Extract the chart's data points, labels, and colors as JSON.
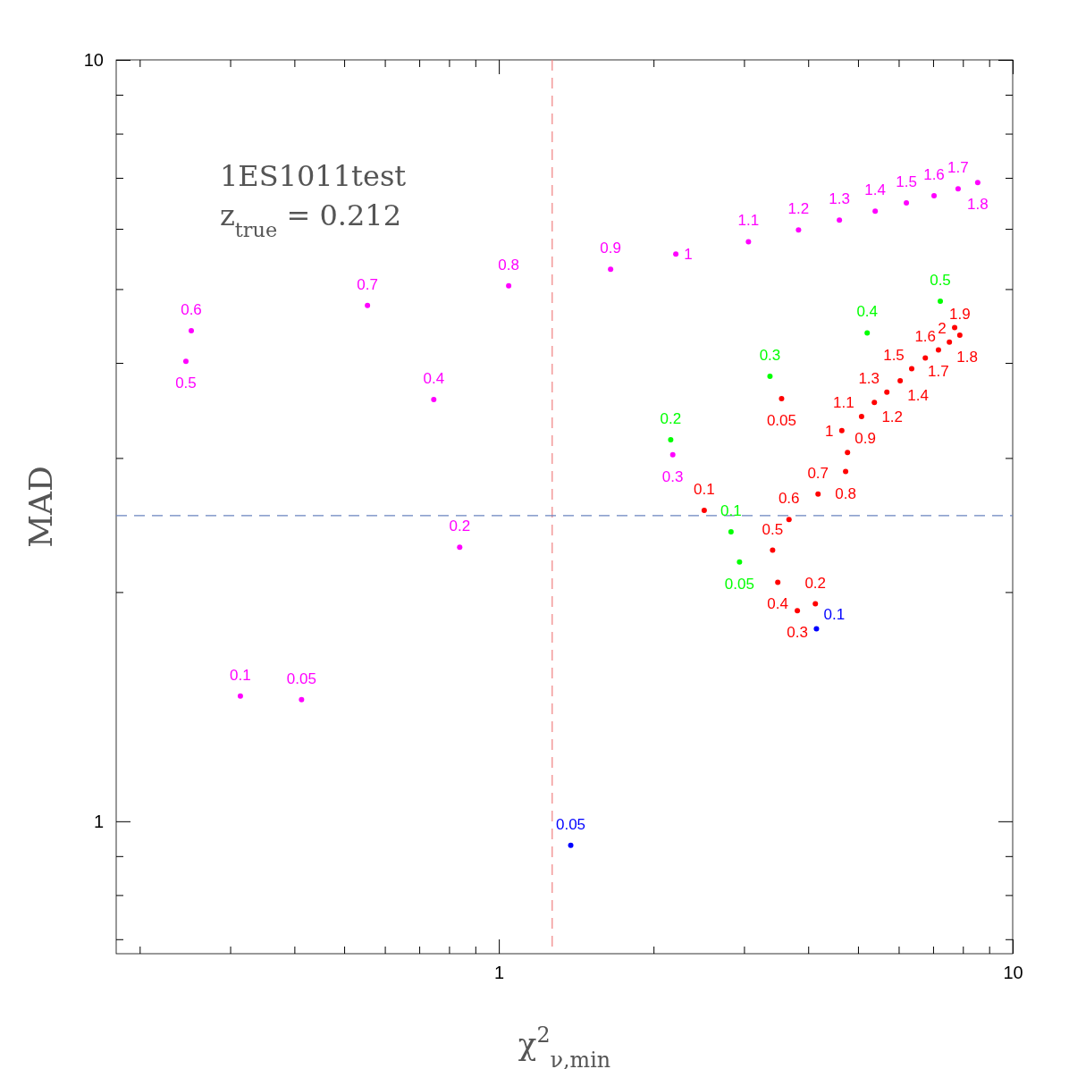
{
  "chart_data": {
    "type": "scatter",
    "xlabel": "χ$^{2}$$_{ν,min}$",
    "ylabel": "MAD",
    "log": "xy",
    "marker": "circle",
    "grid": false,
    "xlim": [
      0.18,
      10
    ],
    "ylim": [
      0.67,
      10
    ],
    "xticks": [
      {
        "value": 0.2,
        "label": null
      },
      {
        "value": 0.3,
        "label": null
      },
      {
        "value": 0.4,
        "label": null
      },
      {
        "value": 0.5,
        "label": null
      },
      {
        "value": 0.6,
        "label": null
      },
      {
        "value": 0.7,
        "label": null
      },
      {
        "value": 0.8,
        "label": null
      },
      {
        "value": 0.9,
        "label": null
      },
      1,
      {
        "value": 2,
        "label": null
      },
      {
        "value": 3,
        "label": null
      },
      {
        "value": 4,
        "label": null
      },
      {
        "value": 5,
        "label": null
      },
      {
        "value": 6,
        "label": null
      },
      {
        "value": 7,
        "label": null
      },
      {
        "value": 8,
        "label": null
      },
      {
        "value": 9,
        "label": null
      },
      10
    ],
    "yticks": [
      {
        "value": 0.7,
        "label": null
      },
      {
        "value": 0.8,
        "label": null
      },
      {
        "value": 0.9,
        "label": null
      },
      1,
      {
        "value": 2,
        "label": null
      },
      {
        "value": 3,
        "label": null
      },
      {
        "value": 4,
        "label": null
      },
      {
        "value": 5,
        "label": null
      },
      {
        "value": 6,
        "label": null
      },
      {
        "value": 7,
        "label": null
      },
      {
        "value": 8,
        "label": null
      },
      {
        "value": 9,
        "label": null
      },
      10
    ],
    "ref_lines": [
      {
        "axis": "x",
        "value": 1.27,
        "color": "#f08080",
        "line_style": "dashed"
      },
      {
        "axis": "y",
        "value": 2.52,
        "color": "#6a84c0",
        "line_style": "dashed"
      }
    ],
    "annotations": [
      "1ES1011test",
      "z$_{true}$ = 0.212",
      {
        "text": "0.05",
        "x": 0.413,
        "y": 1.445
      },
      {
        "text": "0.1",
        "x": 0.314,
        "y": 1.46
      },
      {
        "text": "0.2",
        "x": 0.839,
        "y": 2.29
      },
      {
        "text": "0.3",
        "x": 2.18,
        "y": 3.03
      },
      {
        "text": "0.4",
        "x": 0.747,
        "y": 3.58
      },
      {
        "text": "0.5",
        "x": 0.246,
        "y": 4.02
      },
      {
        "text": "0.6",
        "x": 0.252,
        "y": 4.41
      },
      {
        "text": "0.7",
        "x": 0.555,
        "y": 4.76
      },
      {
        "text": "0.8",
        "x": 1.045,
        "y": 5.05
      },
      {
        "text": "0.9",
        "x": 1.65,
        "y": 5.31
      },
      {
        "text": "1",
        "x": 2.21,
        "y": 5.56
      },
      {
        "text": "1.1",
        "x": 3.06,
        "y": 5.77
      },
      {
        "text": "1.2",
        "x": 3.83,
        "y": 5.98
      },
      {
        "text": "1.3",
        "x": 4.6,
        "y": 6.16
      },
      {
        "text": "1.4",
        "x": 5.4,
        "y": 6.33
      },
      {
        "text": "1.5",
        "x": 6.21,
        "y": 6.49
      },
      {
        "text": "1.6",
        "x": 7.03,
        "y": 6.63
      },
      {
        "text": "1.7",
        "x": 7.83,
        "y": 6.77
      },
      {
        "text": "1.8",
        "x": 8.55,
        "y": 6.9
      },
      {
        "text": "0.05",
        "x": 2.94,
        "y": 2.19
      },
      {
        "text": "0.1",
        "x": 2.83,
        "y": 2.4
      },
      {
        "text": "0.2",
        "x": 2.16,
        "y": 3.17
      },
      {
        "text": "0.3",
        "x": 3.37,
        "y": 3.84
      },
      {
        "text": "0.4",
        "x": 5.21,
        "y": 4.38
      },
      {
        "text": "0.5",
        "x": 7.23,
        "y": 4.82
      },
      {
        "text": "0.05",
        "x": 3.55,
        "y": 3.59
      },
      {
        "text": "0.1",
        "x": 2.51,
        "y": 2.56
      },
      {
        "text": "0.2",
        "x": 4.13,
        "y": 1.93
      },
      {
        "text": "0.3",
        "x": 3.81,
        "y": 1.89
      },
      {
        "text": "0.4",
        "x": 3.49,
        "y": 2.06
      },
      {
        "text": "0.5",
        "x": 3.41,
        "y": 2.27
      },
      {
        "text": "0.6",
        "x": 3.67,
        "y": 2.49
      },
      {
        "text": "0.7",
        "x": 4.18,
        "y": 2.69
      },
      {
        "text": "0.8",
        "x": 4.73,
        "y": 2.88
      },
      {
        "text": "0.9",
        "x": 4.77,
        "y": 3.05
      },
      {
        "text": "1",
        "x": 4.65,
        "y": 3.26
      },
      {
        "text": "1.1",
        "x": 5.08,
        "y": 3.4
      },
      {
        "text": "1.2",
        "x": 5.38,
        "y": 3.55
      },
      {
        "text": "1.3",
        "x": 5.69,
        "y": 3.66
      },
      {
        "text": "1.4",
        "x": 6.04,
        "y": 3.79
      },
      {
        "text": "1.5",
        "x": 6.36,
        "y": 3.93
      },
      {
        "text": "1.6",
        "x": 6.76,
        "y": 4.06
      },
      {
        "text": "1.7",
        "x": 7.17,
        "y": 4.16
      },
      {
        "text": "1.8",
        "x": 7.53,
        "y": 4.26
      },
      {
        "text": "1.9",
        "x": 7.89,
        "y": 4.35
      },
      {
        "text": "2",
        "x": 7.71,
        "y": 4.45
      },
      {
        "text": "0.05",
        "x": 1.38,
        "y": 0.93
      },
      {
        "text": "0.1",
        "x": 4.15,
        "y": 1.79
      }
    ],
    "series": [
      {
        "color": "#ff00ff",
        "x": [
          0.413,
          0.314,
          0.839,
          2.18,
          0.747,
          0.246,
          0.252,
          0.555,
          1.045,
          1.65,
          2.21,
          3.06,
          3.83,
          4.6,
          5.4,
          6.21,
          7.03,
          7.83,
          8.55
        ],
        "values": [
          1.445,
          1.46,
          2.29,
          3.03,
          3.58,
          4.02,
          4.41,
          4.76,
          5.05,
          5.31,
          5.56,
          5.77,
          5.98,
          6.16,
          6.33,
          6.49,
          6.63,
          6.77,
          6.9
        ]
      },
      {
        "color": "#00ff00",
        "x": [
          2.94,
          2.83,
          2.16,
          3.37,
          5.21,
          7.23
        ],
        "values": [
          2.19,
          2.4,
          3.17,
          3.84,
          4.38,
          4.82
        ]
      },
      {
        "color": "#ff0000",
        "x": [
          3.55,
          2.51,
          4.13,
          3.81,
          3.49,
          3.41,
          3.67,
          4.18,
          4.73,
          4.77,
          4.65,
          5.08,
          5.38,
          5.69,
          6.04,
          6.36,
          6.76,
          7.17,
          7.53,
          7.89,
          7.71
        ],
        "values": [
          3.59,
          2.56,
          1.93,
          1.89,
          2.06,
          2.27,
          2.49,
          2.69,
          2.88,
          3.05,
          3.26,
          3.4,
          3.55,
          3.66,
          3.79,
          3.93,
          4.06,
          4.16,
          4.26,
          4.35,
          4.45
        ]
      },
      {
        "color": "#0000ff",
        "x": [
          1.38,
          4.15
        ],
        "values": [
          0.93,
          1.79
        ]
      }
    ]
  }
}
